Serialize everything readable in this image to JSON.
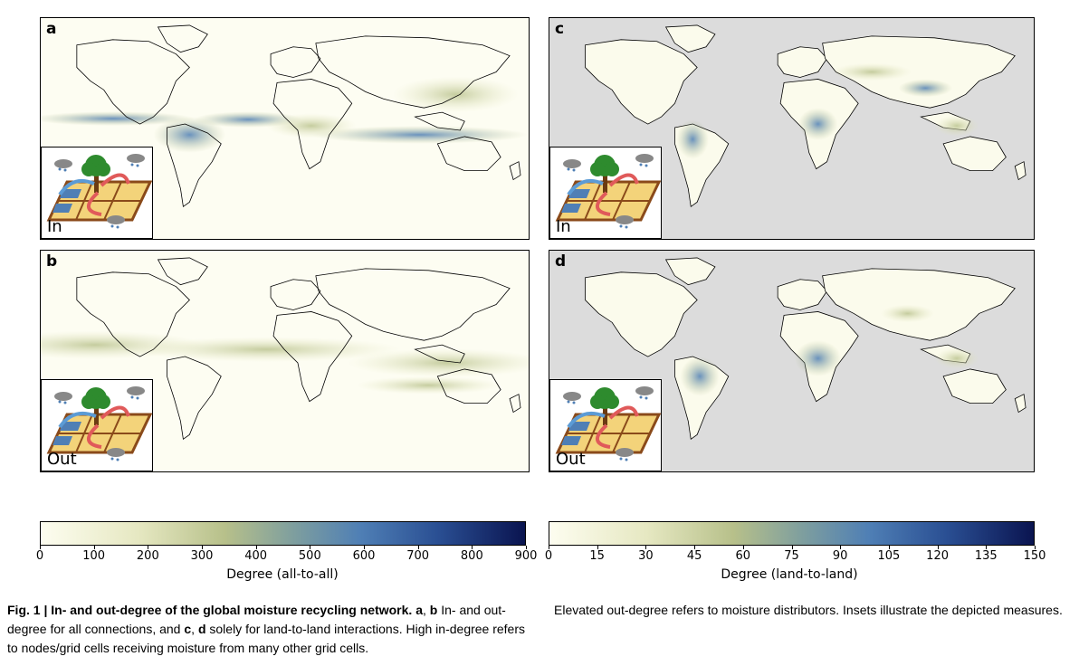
{
  "panels": [
    {
      "id": "a",
      "label": "a",
      "inset": "In",
      "landOnly": false
    },
    {
      "id": "b",
      "label": "b",
      "inset": "Out",
      "landOnly": false
    },
    {
      "id": "c",
      "label": "c",
      "inset": "In",
      "landOnly": true
    },
    {
      "id": "d",
      "label": "d",
      "inset": "Out",
      "landOnly": true
    }
  ],
  "colorbars": [
    {
      "label": "Degree (all-to-all)",
      "ticks": [
        "0",
        "100",
        "200",
        "300",
        "400",
        "500",
        "600",
        "700",
        "800",
        "900"
      ],
      "min": 0,
      "max": 900
    },
    {
      "label": "Degree (land-to-land)",
      "ticks": [
        "0",
        "15",
        "30",
        "45",
        "60",
        "75",
        "90",
        "105",
        "120",
        "135",
        "150"
      ],
      "min": 0,
      "max": 150
    }
  ],
  "colors": {
    "low": "#fdfdf2",
    "mid": "#b7c08a",
    "blue": "#4f7fb5",
    "high": "#0a1450",
    "ocean_masked": "#dcdcdc"
  },
  "caption": {
    "fig": "Fig. 1 | In- and out-degree of the global moisture recycling network.",
    "a": "a",
    "b": "b",
    "t1": " In- and out-degree for all connections, and ",
    "c": "c",
    "d": "d",
    "t2": " solely for land-to-land interactions. High in-degree refers to nodes/grid cells receiving moisture from many other grid cells.",
    "right": "Elevated out-degree refers to moisture distributors. Insets illustrate the depicted measures."
  }
}
